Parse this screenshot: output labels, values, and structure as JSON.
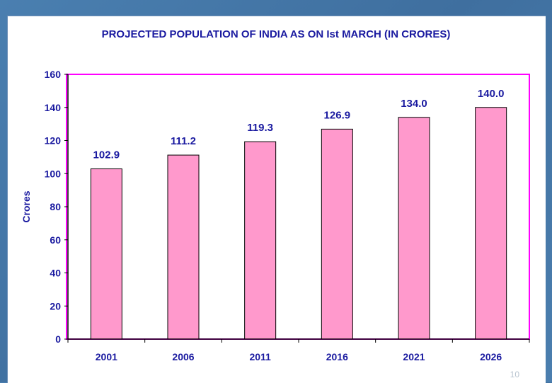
{
  "page_number": "10",
  "colors": {
    "title": "#1a1aa0",
    "axis_text": "#1a1aa0",
    "bar_fill": "#ff99cc",
    "bar_stroke": "#000000",
    "plot_border": "#ff00ff",
    "axis_line": "#000000"
  },
  "chart_data": {
    "type": "bar",
    "title": "PROJECTED POPULATION OF INDIA AS ON Ist MARCH (IN CRORES)",
    "xlabel": "",
    "ylabel": "Crores",
    "categories": [
      "2001",
      "2006",
      "2011",
      "2016",
      "2021",
      "2026"
    ],
    "values": [
      102.9,
      111.2,
      119.3,
      126.9,
      134.0,
      140.0
    ],
    "data_labels": [
      "102.9",
      "111.2",
      "119.3",
      "126.9",
      "134.0",
      "140.0"
    ],
    "ylim": [
      0,
      160
    ],
    "yticks": [
      0,
      20,
      40,
      60,
      80,
      100,
      120,
      140,
      160
    ],
    "grid": false,
    "legend": "none"
  }
}
